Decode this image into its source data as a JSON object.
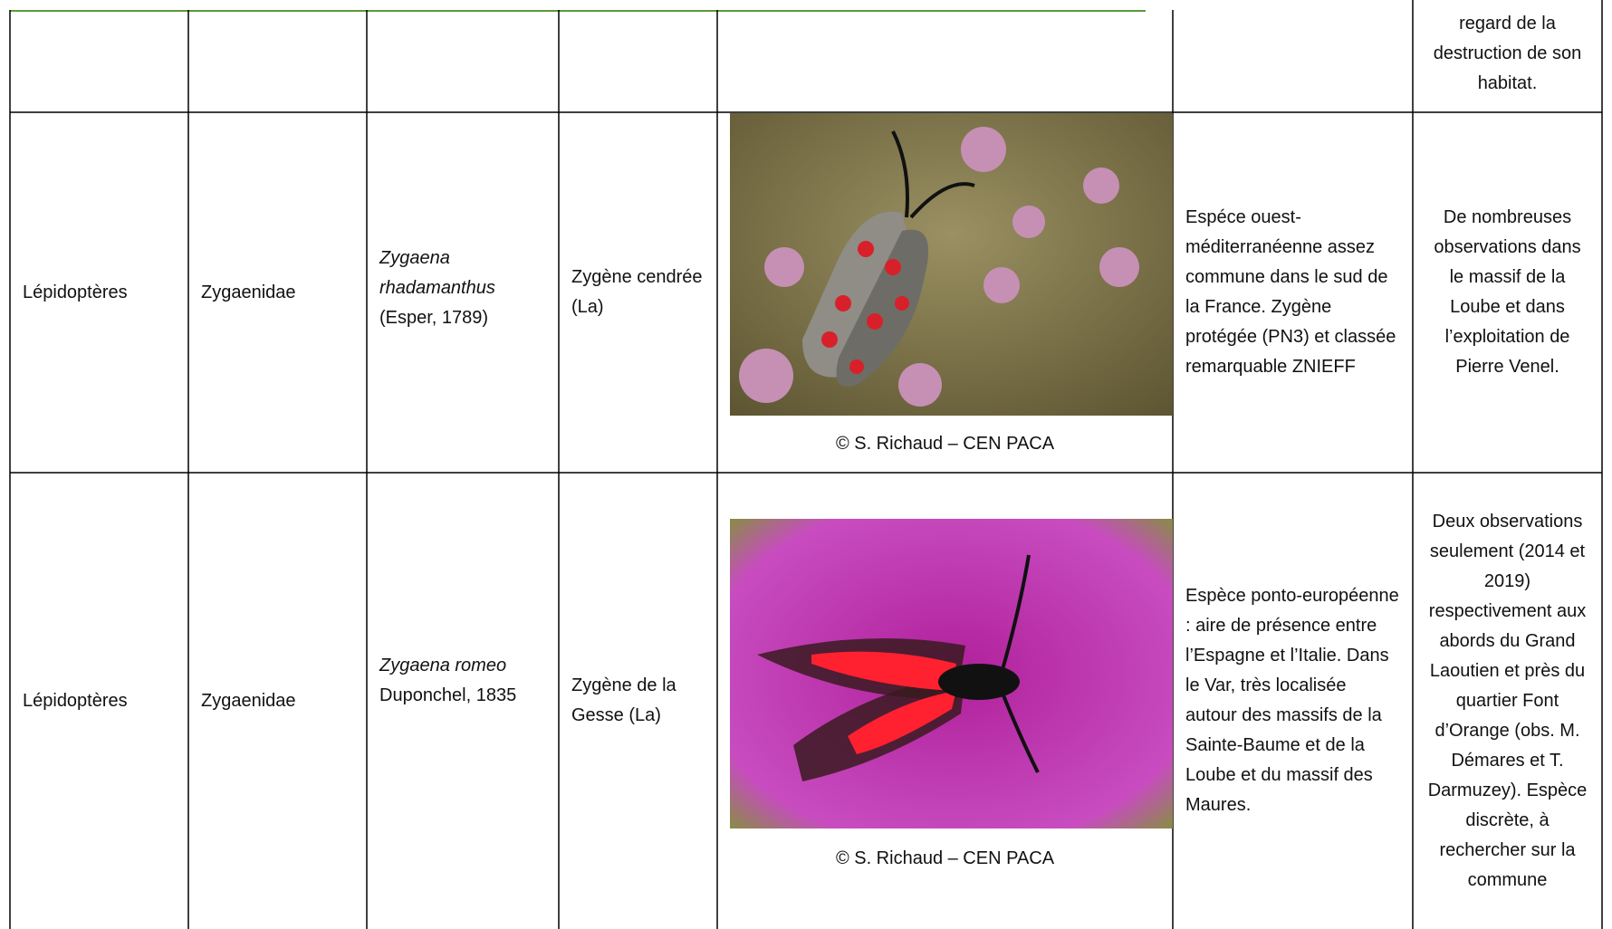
{
  "table": {
    "rows": [
      {
        "remark": "regard de la destruction de son habitat."
      },
      {
        "order": "Lépidoptères",
        "family": "Zygaenidae",
        "scientific_name": "Zygaena rhadamanthus",
        "author": "(Esper, 1789)",
        "common_name": "Zygène cendrée (La)",
        "photo_credit": "© S. Richaud – CEN PACA",
        "status": "Espéce ouest-méditerranéenne assez commune dans le sud de la France. Zygène protégée (PN3) et classée remarquable ZNIEFF",
        "remark": "De nombreuses observations dans le massif de la Loube et dans l’exploitation de Pierre Venel."
      },
      {
        "order": "Lépidoptères",
        "family": "Zygaenidae",
        "scientific_name": "Zygaena romeo",
        "author": "Duponchel, 1835",
        "common_name": "Zygène de la Gesse (La)",
        "photo_credit": "© S. Richaud – CEN PACA",
        "status": "Espèce ponto-européenne : aire de présence entre l’Espagne et l’Italie. Dans le Var, très localisée autour des massifs de la Sainte-Baume et de la Loube et du massif des Maures.",
        "remark": "Deux observations seulement (2014 et 2019) respectivement aux abords du Grand Laoutien et près du quartier Font d’Orange (obs. M. Démares et T. Darmuzey). Espèce discrète, à rechercher sur la commune"
      }
    ]
  }
}
